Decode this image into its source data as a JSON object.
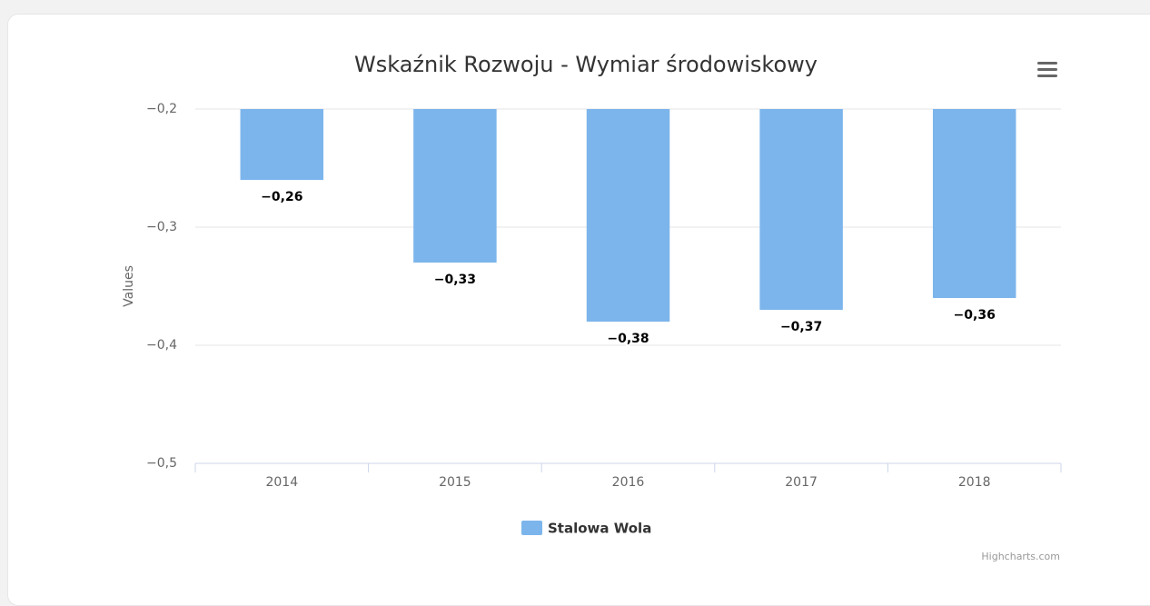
{
  "chart_data": {
    "type": "bar",
    "title": "Wskaźnik Rozwoju - Wymiar środowiskowy",
    "y_label": "Values",
    "categories": [
      "2014",
      "2015",
      "2016",
      "2017",
      "2018"
    ],
    "series": [
      {
        "name": "Stalowa Wola",
        "color": "#7cb5ec",
        "values": [
          -0.26,
          -0.33,
          -0.38,
          -0.37,
          -0.36
        ],
        "value_labels": [
          "−0,26",
          "−0,33",
          "−0,38",
          "−0,37",
          "−0,36"
        ]
      }
    ],
    "ylim": [
      -0.5,
      -0.2
    ],
    "yticks": [
      {
        "value": -0.5,
        "label": "−0,5"
      },
      {
        "value": -0.4,
        "label": "−0,4"
      },
      {
        "value": -0.3,
        "label": "−0,3"
      },
      {
        "value": -0.2,
        "label": "−0,2"
      }
    ],
    "grid": true,
    "legend": "bottom",
    "credits": "Highcharts.com"
  }
}
